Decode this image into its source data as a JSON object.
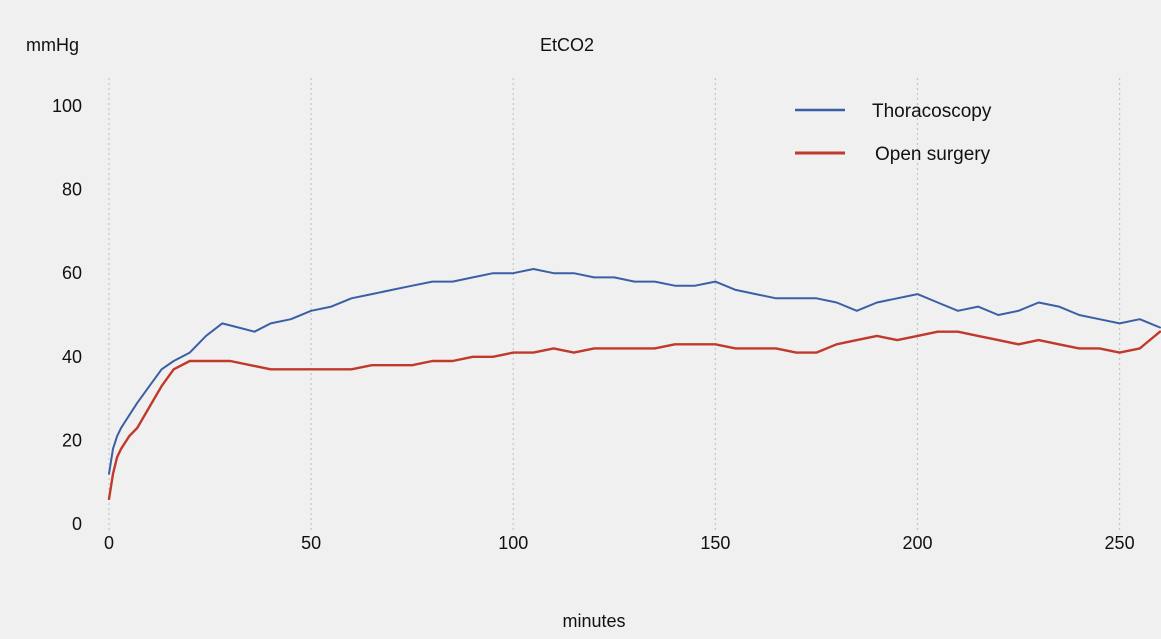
{
  "chart_data": {
    "type": "line",
    "title": "EtCO2",
    "xlabel": "minutes",
    "ylabel": "mmHg",
    "xlim": [
      0,
      260
    ],
    "ylim": [
      0,
      100
    ],
    "x_ticks": [
      0,
      50,
      100,
      150,
      200,
      250
    ],
    "y_ticks": [
      0,
      20,
      40,
      60,
      80,
      100
    ],
    "grid": "vertical dotted",
    "legend_position": "top-right",
    "series": [
      {
        "name": "Thoracoscopy",
        "color": "#3b5fa5",
        "x": [
          0,
          1,
          2,
          3,
          5,
          7,
          10,
          13,
          16,
          20,
          24,
          28,
          32,
          36,
          40,
          45,
          50,
          55,
          60,
          65,
          70,
          75,
          80,
          85,
          90,
          95,
          100,
          105,
          110,
          115,
          120,
          125,
          130,
          135,
          140,
          145,
          150,
          155,
          160,
          165,
          170,
          175,
          180,
          185,
          190,
          195,
          200,
          205,
          210,
          215,
          220,
          225,
          230,
          235,
          240,
          245,
          250,
          255,
          260
        ],
        "y": [
          12,
          18,
          21,
          23,
          26,
          29,
          33,
          37,
          39,
          41,
          45,
          48,
          47,
          46,
          48,
          49,
          51,
          52,
          54,
          55,
          56,
          57,
          58,
          58,
          59,
          60,
          60,
          61,
          60,
          60,
          59,
          59,
          58,
          58,
          57,
          57,
          58,
          56,
          55,
          54,
          54,
          54,
          53,
          51,
          53,
          54,
          55,
          53,
          51,
          52,
          50,
          51,
          53,
          52,
          50,
          49,
          48,
          49,
          47
        ]
      },
      {
        "name": "Open surgery",
        "color": "#c0392b",
        "x": [
          0,
          1,
          2,
          3,
          5,
          7,
          10,
          13,
          16,
          20,
          25,
          30,
          35,
          40,
          45,
          50,
          55,
          60,
          65,
          70,
          75,
          80,
          85,
          90,
          95,
          100,
          105,
          110,
          115,
          120,
          125,
          130,
          135,
          140,
          145,
          150,
          155,
          160,
          165,
          170,
          175,
          180,
          185,
          190,
          195,
          200,
          205,
          210,
          215,
          220,
          225,
          230,
          235,
          240,
          245,
          250,
          255,
          260
        ],
        "y": [
          6,
          12,
          16,
          18,
          21,
          23,
          28,
          33,
          37,
          39,
          39,
          39,
          38,
          37,
          37,
          37,
          37,
          37,
          38,
          38,
          38,
          39,
          39,
          40,
          40,
          41,
          41,
          42,
          41,
          42,
          42,
          42,
          42,
          43,
          43,
          43,
          42,
          42,
          42,
          41,
          41,
          43,
          44,
          45,
          44,
          45,
          46,
          46,
          45,
          44,
          43,
          44,
          43,
          42,
          42,
          41,
          42,
          46
        ]
      }
    ]
  }
}
